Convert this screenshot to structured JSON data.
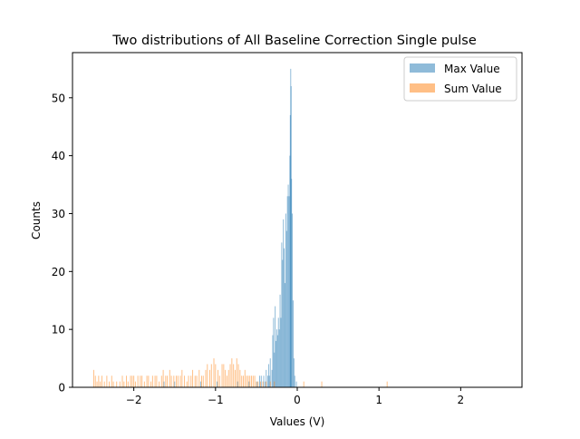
{
  "chart_data": {
    "type": "bar",
    "title": "Two distributions of All Baseline Correction Single pulse",
    "xlabel": "Values (V)",
    "ylabel": "Counts",
    "xlim": [
      -2.75,
      2.75
    ],
    "ylim": [
      0,
      57.8
    ],
    "xticks": [
      {
        "value": -2,
        "label": "−2"
      },
      {
        "value": -1,
        "label": "−1"
      },
      {
        "value": 0,
        "label": "0"
      },
      {
        "value": 1,
        "label": "1"
      },
      {
        "value": 2,
        "label": "2"
      }
    ],
    "yticks": [
      {
        "value": 0,
        "label": "0"
      },
      {
        "value": 10,
        "label": "10"
      },
      {
        "value": 20,
        "label": "20"
      },
      {
        "value": 30,
        "label": "30"
      },
      {
        "value": 40,
        "label": "40"
      },
      {
        "value": 50,
        "label": "50"
      }
    ],
    "grid": false,
    "legend_position": "top-right",
    "bin_width": 0.011,
    "series": [
      {
        "name": "Max Value",
        "color": "#1f77b4",
        "opacity": 0.5,
        "points": [
          [
            -1.63,
            1
          ],
          [
            -1.5,
            1
          ],
          [
            -1.18,
            1
          ],
          [
            -0.98,
            1
          ],
          [
            -0.73,
            1
          ],
          [
            -0.59,
            1
          ],
          [
            -0.49,
            1
          ],
          [
            -0.46,
            2
          ],
          [
            -0.44,
            2
          ],
          [
            -0.41,
            2
          ],
          [
            -0.39,
            1
          ],
          [
            -0.38,
            3
          ],
          [
            -0.36,
            2
          ],
          [
            -0.35,
            4
          ],
          [
            -0.34,
            2
          ],
          [
            -0.33,
            5
          ],
          [
            -0.31,
            3
          ],
          [
            -0.3,
            9
          ],
          [
            -0.29,
            12
          ],
          [
            -0.28,
            6
          ],
          [
            -0.27,
            14
          ],
          [
            -0.26,
            8
          ],
          [
            -0.25,
            10
          ],
          [
            -0.24,
            9
          ],
          [
            -0.23,
            12
          ],
          [
            -0.22,
            10
          ],
          [
            -0.21,
            16
          ],
          [
            -0.2,
            12
          ],
          [
            -0.19,
            25
          ],
          [
            -0.18,
            22
          ],
          [
            -0.17,
            29
          ],
          [
            -0.16,
            24
          ],
          [
            -0.15,
            18
          ],
          [
            -0.14,
            30
          ],
          [
            -0.13,
            27
          ],
          [
            -0.12,
            33
          ],
          [
            -0.11,
            35
          ],
          [
            -0.1,
            33
          ],
          [
            -0.09,
            40
          ],
          [
            -0.085,
            47
          ],
          [
            -0.08,
            55
          ],
          [
            -0.075,
            52
          ],
          [
            -0.07,
            36
          ],
          [
            -0.06,
            30
          ],
          [
            -0.05,
            15
          ],
          [
            -0.04,
            5
          ],
          [
            -0.03,
            2
          ],
          [
            -0.01,
            1
          ]
        ]
      },
      {
        "name": "Sum Value",
        "color": "#ff7f0e",
        "opacity": 0.5,
        "points": [
          [
            -2.49,
            3
          ],
          [
            -2.47,
            2
          ],
          [
            -2.45,
            1
          ],
          [
            -2.43,
            2
          ],
          [
            -2.41,
            1
          ],
          [
            -2.39,
            2
          ],
          [
            -2.36,
            1
          ],
          [
            -2.33,
            2
          ],
          [
            -2.3,
            1
          ],
          [
            -2.27,
            2
          ],
          [
            -2.25,
            1
          ],
          [
            -2.21,
            1
          ],
          [
            -2.17,
            1
          ],
          [
            -2.14,
            2
          ],
          [
            -2.12,
            1
          ],
          [
            -2.09,
            2
          ],
          [
            -2.07,
            1
          ],
          [
            -2.04,
            2
          ],
          [
            -2.02,
            2
          ],
          [
            -2.0,
            2
          ],
          [
            -1.98,
            1
          ],
          [
            -1.95,
            2
          ],
          [
            -1.92,
            2
          ],
          [
            -1.9,
            2
          ],
          [
            -1.87,
            1
          ],
          [
            -1.84,
            2
          ],
          [
            -1.82,
            2
          ],
          [
            -1.79,
            1
          ],
          [
            -1.77,
            2
          ],
          [
            -1.74,
            2
          ],
          [
            -1.72,
            2
          ],
          [
            -1.69,
            1
          ],
          [
            -1.66,
            2
          ],
          [
            -1.64,
            3
          ],
          [
            -1.61,
            2
          ],
          [
            -1.59,
            2
          ],
          [
            -1.56,
            3
          ],
          [
            -1.54,
            2
          ],
          [
            -1.51,
            2
          ],
          [
            -1.48,
            2
          ],
          [
            -1.46,
            2
          ],
          [
            -1.43,
            2
          ],
          [
            -1.41,
            3
          ],
          [
            -1.38,
            2
          ],
          [
            -1.35,
            1
          ],
          [
            -1.33,
            2
          ],
          [
            -1.3,
            2
          ],
          [
            -1.28,
            3
          ],
          [
            -1.25,
            2
          ],
          [
            -1.23,
            2
          ],
          [
            -1.2,
            3
          ],
          [
            -1.17,
            2
          ],
          [
            -1.15,
            2
          ],
          [
            -1.12,
            3
          ],
          [
            -1.1,
            4
          ],
          [
            -1.07,
            3
          ],
          [
            -1.05,
            4
          ],
          [
            -1.02,
            5
          ],
          [
            -1.0,
            4
          ],
          [
            -0.97,
            3
          ],
          [
            -0.95,
            2
          ],
          [
            -0.92,
            4
          ],
          [
            -0.9,
            4
          ],
          [
            -0.88,
            3
          ],
          [
            -0.86,
            2
          ],
          [
            -0.84,
            3
          ],
          [
            -0.82,
            4
          ],
          [
            -0.8,
            5
          ],
          [
            -0.78,
            4
          ],
          [
            -0.76,
            3
          ],
          [
            -0.74,
            5
          ],
          [
            -0.72,
            4
          ],
          [
            -0.7,
            3
          ],
          [
            -0.68,
            2
          ],
          [
            -0.66,
            2
          ],
          [
            -0.64,
            3
          ],
          [
            -0.62,
            2
          ],
          [
            -0.6,
            2
          ],
          [
            -0.58,
            2
          ],
          [
            -0.56,
            2
          ],
          [
            -0.54,
            2
          ],
          [
            -0.52,
            2
          ],
          [
            -0.5,
            1
          ],
          [
            -0.48,
            1
          ],
          [
            -0.45,
            1
          ],
          [
            -0.42,
            1
          ],
          [
            -0.38,
            1
          ],
          [
            -0.33,
            1
          ],
          [
            -0.28,
            1
          ],
          [
            0.08,
            1
          ],
          [
            0.3,
            1
          ],
          [
            1.1,
            1
          ]
        ]
      }
    ]
  }
}
